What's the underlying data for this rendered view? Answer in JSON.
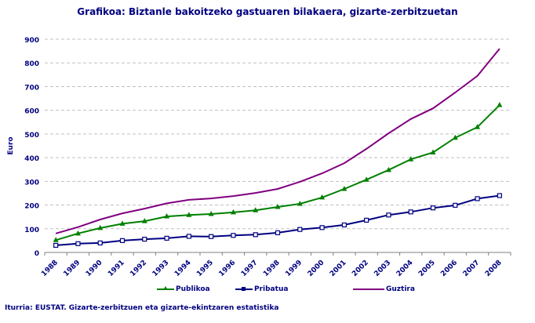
{
  "title": "Grafikoa:  Biztanle bakoitzeko gastuaren bilakaera, gizarte-zerbitzuetan",
  "source": "Iturria: EUSTAT. Gizarte-zerbitzuen eta gizarte-ekintzaren estatistika",
  "chart_data": {
    "type": "line",
    "title": "Grafikoa:  Biztanle bakoitzeko gastuaren bilakaera, gizarte-zerbitzuetan",
    "xlabel": "",
    "ylabel": "Euro",
    "ylim": [
      0,
      900
    ],
    "yticks": [
      0,
      100,
      200,
      300,
      400,
      500,
      600,
      700,
      800,
      900
    ],
    "grid": true,
    "legend_position": "bottom",
    "categories": [
      "1988",
      "1989",
      "1990",
      "1991",
      "1992",
      "1993",
      "1994",
      "1995",
      "1996",
      "1997",
      "1998",
      "1999",
      "2000",
      "2001",
      "2002",
      "2003",
      "2004",
      "2005",
      "2006",
      "2007",
      "2008"
    ],
    "series": [
      {
        "name": "Publikoa",
        "color": "#008000",
        "marker": "triangle",
        "values": [
          52,
          80,
          103,
          121,
          132,
          152,
          158,
          162,
          169,
          178,
          192,
          205,
          232,
          268,
          307,
          348,
          393,
          422,
          484,
          529,
          622
        ]
      },
      {
        "name": "Pribatua",
        "color": "#000080",
        "marker": "square",
        "values": [
          30,
          37,
          40,
          50,
          56,
          60,
          68,
          67,
          72,
          75,
          83,
          97,
          105,
          116,
          136,
          158,
          171,
          188,
          199,
          227,
          240
        ]
      },
      {
        "name": "Guztira",
        "color": "#800080",
        "marker": "none",
        "values": [
          80,
          107,
          139,
          165,
          185,
          207,
          222,
          228,
          238,
          251,
          268,
          298,
          334,
          377,
          437,
          503,
          563,
          608,
          675,
          745,
          860
        ]
      }
    ]
  },
  "legend": {
    "items": [
      {
        "label": "Publikoa",
        "color": "#008000"
      },
      {
        "label": "Pribatua",
        "color": "#000080"
      },
      {
        "label": "Guztira",
        "color": "#800080"
      }
    ]
  },
  "colors": {
    "text": "#000080",
    "grid": "#c0c0c0",
    "axis": "#808080"
  }
}
